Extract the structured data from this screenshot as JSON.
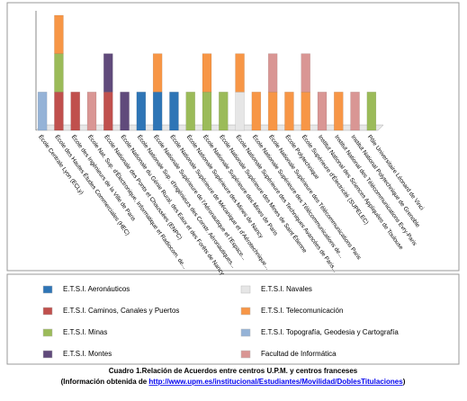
{
  "chart_data": {
    "type": "stacked_bar",
    "categories": [
      "École Centrale Lyon (ECLy)",
      "École des Hautes Études Commerciales (HEC)",
      "École des Ingénieurs de la Ville de Paris",
      "École Nat. Sup. d'Électronique, Informatique et Radiocom. de...",
      "École Nationale des Ponts et Chaussées (ENPC)",
      "École Nationale du Génie Rural, des Eaux et des Forêts de Nancy",
      "École Nationale Sup. d'Ingénieurs des Constr. Aéronautiques...",
      "École Nationale Supérieure de l'Aéronautique et l'Espace...",
      "École Nationale Supérieure de Mécanique et d'Aérotechnique...",
      "École Nationale Supérieure des Mines de Nancy",
      "École Nationale Supérieure des Mines de Paris",
      "École Nationale Supérieure des Mines de Saint Étienne",
      "École Nationale Supérieure des Techniques Avancées de Paris...",
      "École Nationale Supérieure des Télécommunications de...",
      "École Nationale Supérieure des Télécommunications Paris",
      "École Polytechnique",
      "École Supérieure d'Électricité (SUPELEC)",
      "Institut National des Sciences Appliquées de Toulouse",
      "Institut National des Télécommunications Evry-Paris",
      "Institut National Polytechnique de Grenoble",
      "Pôle Universitaire Léonard de Vinci"
    ],
    "series": [
      {
        "name": "E.T.S.I. Aeronáuticos",
        "color": "#2e75b6",
        "values": [
          0,
          0,
          0,
          0,
          0,
          0,
          1,
          1,
          1,
          0,
          0,
          0,
          0,
          0,
          0,
          0,
          0,
          0,
          0,
          0,
          0
        ]
      },
      {
        "name": "E.T.S.I. Caminos, Canales y Puertos",
        "color": "#c0504d",
        "values": [
          0,
          1,
          1,
          0,
          1,
          0,
          0,
          0,
          0,
          0,
          0,
          0,
          0,
          0,
          0,
          0,
          0,
          0,
          0,
          0,
          0
        ]
      },
      {
        "name": "E.T.S.I. Minas",
        "color": "#9bbb59",
        "values": [
          0,
          1,
          0,
          0,
          0,
          0,
          0,
          0,
          0,
          1,
          1,
          1,
          0,
          0,
          0,
          0,
          0,
          0,
          0,
          0,
          1
        ]
      },
      {
        "name": "E.T.S.I. Montes",
        "color": "#604a7b",
        "values": [
          0,
          0,
          0,
          0,
          1,
          1,
          0,
          0,
          0,
          0,
          0,
          0,
          0,
          0,
          0,
          0,
          0,
          0,
          0,
          0,
          0
        ]
      },
      {
        "name": "E.T.S.I. Navales",
        "color": "#e6e6e6",
        "values": [
          0,
          0,
          0,
          0,
          0,
          0,
          0,
          0,
          0,
          0,
          0,
          0,
          1,
          0,
          0,
          0,
          0,
          0,
          0,
          0,
          0
        ]
      },
      {
        "name": "E.T.S.I. Telecomunicación",
        "color": "#f79646",
        "values": [
          0,
          1,
          0,
          0,
          0,
          0,
          0,
          1,
          0,
          0,
          1,
          0,
          1,
          1,
          1,
          1,
          1,
          0,
          1,
          0,
          0
        ]
      },
      {
        "name": "E.T.S.I. Topografía, Geodesia y Cartografía",
        "color": "#95b3d7",
        "values": [
          1,
          0,
          0,
          0,
          0,
          0,
          0,
          0,
          0,
          0,
          0,
          0,
          0,
          0,
          0,
          0,
          0,
          0,
          0,
          0,
          0
        ]
      },
      {
        "name": "Facultad de Informática",
        "color": "#d99694",
        "values": [
          0,
          0,
          0,
          1,
          0,
          0,
          0,
          0,
          0,
          0,
          0,
          0,
          0,
          0,
          1,
          0,
          1,
          1,
          0,
          1,
          0
        ]
      }
    ],
    "caption": "Cuadro 1.Relación de Acuerdos entre centros U.P.M. y centros franceses",
    "source_prefix": "(Información obtenida de ",
    "source_link": "http://www.upm.es/institucional/Estudiantes/Movilidad/DoblesTitulaciones",
    "source_suffix": ")"
  }
}
